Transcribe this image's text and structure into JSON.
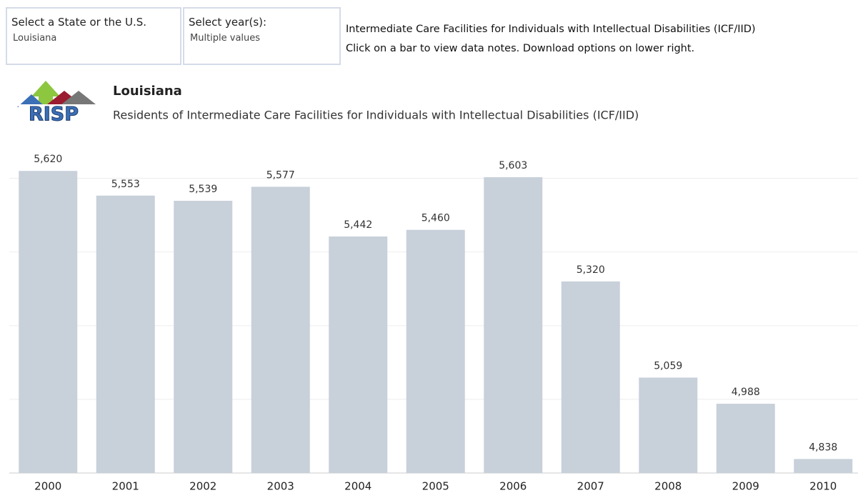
{
  "filters": [
    {
      "label": "Select a State or the U.S.",
      "value": "Louisiana"
    },
    {
      "label": "Select year(s):",
      "value": "Multiple values"
    }
  ],
  "info": [
    "Intermediate Care Facilities for Individuals with Intellectual Disabilities (ICF/IID)",
    "Click on a bar to view data notes. Download options on lower right."
  ],
  "logo": "RISP",
  "chart_data": {
    "type": "bar",
    "title": "Louisiana",
    "subtitle": "Residents of Intermediate Care Facilities for Individuals with Intellectual Disabilities (ICF/IID)",
    "categories": [
      "2000",
      "2001",
      "2002",
      "2003",
      "2004",
      "2005",
      "2006",
      "2007",
      "2008",
      "2009",
      "2010"
    ],
    "values": [
      5620,
      5553,
      5539,
      5577,
      5442,
      5460,
      5603,
      5320,
      5059,
      4988,
      4838
    ],
    "value_labels": [
      "5,620",
      "5,553",
      "5,539",
      "5,577",
      "5,442",
      "5,460",
      "5,603",
      "5,320",
      "5,059",
      "4,988",
      "4,838"
    ],
    "color": "#c8d0da",
    "ylim": [
      4800,
      5700
    ],
    "yticks": [
      4800,
      5000,
      5200,
      5400,
      5600
    ],
    "grid": true
  }
}
